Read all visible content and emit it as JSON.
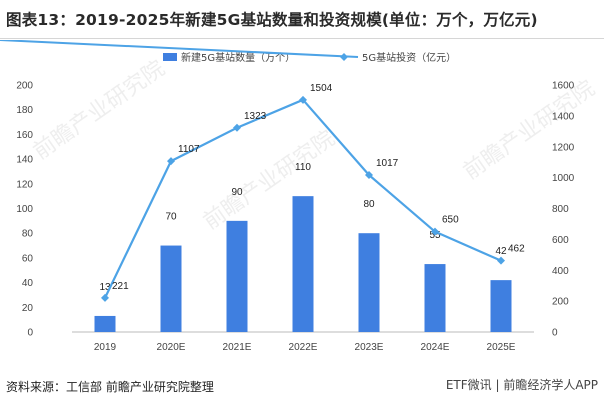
{
  "header": {
    "title": "图表13：2019-2025年新建5G基站数量和投资规模(单位：万个，万亿元)"
  },
  "footer": {
    "source": "资料来源：工信部 前瞻产业研究院整理",
    "watermark": "ETF微讯 | 前瞻经济学人APP"
  },
  "chart_data": {
    "type": "bar",
    "categories": [
      "2019",
      "2020E",
      "2021E",
      "2022E",
      "2023E",
      "2024E",
      "2025E"
    ],
    "series": [
      {
        "name": "新建5G基站数量（万个）",
        "type": "bar",
        "axis": "left",
        "color": "#3f7fe0",
        "values": [
          13,
          70,
          90,
          110,
          80,
          55,
          42
        ]
      },
      {
        "name": "5G基站投资（亿元）",
        "type": "line",
        "axis": "right",
        "color": "#4da3e6",
        "values": [
          221,
          1107,
          1323,
          1504,
          1017,
          650,
          462
        ]
      }
    ],
    "y_left": {
      "min": 0,
      "max": 200,
      "ticks": [
        0,
        20,
        40,
        60,
        80,
        100,
        120,
        140,
        160,
        180,
        200
      ]
    },
    "y_right": {
      "min": 0,
      "max": 1600,
      "ticks": [
        0,
        200,
        400,
        600,
        800,
        1000,
        1200,
        1400,
        1600
      ]
    },
    "legend_position": "top-center",
    "grid": false
  }
}
